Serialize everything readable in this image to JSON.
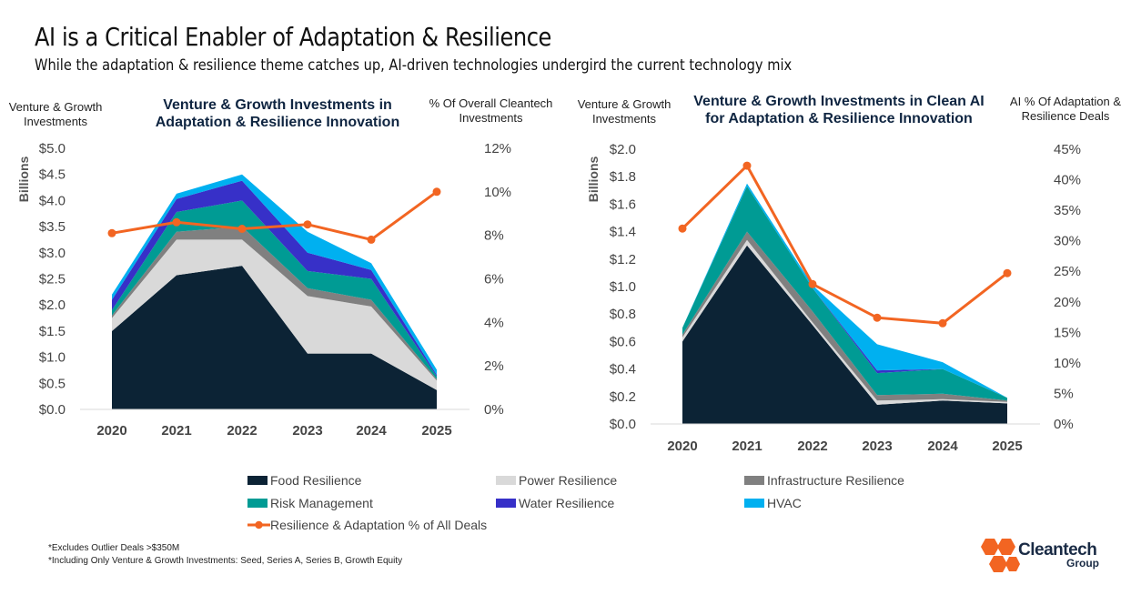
{
  "title": "AI is a Critical Enabler of Adaptation & Resilience",
  "subtitle": "While the adaptation & resilience theme catches up, AI-driven technologies undergird the current technology mix",
  "colors": {
    "food": "#0c2335",
    "power": "#d9d9d9",
    "infrastructure": "#808080",
    "risk": "#009b94",
    "water": "#3730c8",
    "hvac": "#00b0f0",
    "line": "#f26522"
  },
  "legend": {
    "food": "Food Resilience",
    "power": "Power Resilience",
    "infrastructure": "Infrastructure Resilience",
    "risk": "Risk Management",
    "water": "Water Resilience",
    "hvac": "HVAC",
    "line": "Resilience & Adaptation % of All Deals"
  },
  "footnotes": [
    "*Excludes Outlier Deals >$350M",
    "*Including Only Venture & Growth Investments: Seed, Series A, Series B, Growth Equity"
  ],
  "logo": {
    "name": "Cleantech",
    "sub": "Group"
  },
  "chart_data": [
    {
      "type": "area",
      "title": "Venture & Growth Investments in Adaptation & Resilience Innovation",
      "left_axis_title": "Venture & Growth Investments",
      "right_axis_title": "% Of Overall Cleantech Investments",
      "ylabel": "Billions",
      "categories": [
        "2020",
        "2021",
        "2022",
        "2023",
        "2024",
        "2025"
      ],
      "ylim": [
        0,
        5.0
      ],
      "yticks": [
        "$0.0",
        "$0.5",
        "$1.0",
        "$1.5",
        "$2.0",
        "$2.5",
        "$3.0",
        "$3.5",
        "$4.0",
        "$4.5",
        "$5.0"
      ],
      "y2lim": [
        0,
        12
      ],
      "y2ticks": [
        "0%",
        "2%",
        "4%",
        "6%",
        "8%",
        "10%",
        "12%"
      ],
      "stacked_series": [
        {
          "key": "food",
          "name": "Food Resilience",
          "values": [
            1.5,
            2.57,
            2.75,
            1.07,
            1.07,
            0.37
          ]
        },
        {
          "key": "power",
          "name": "Power Resilience",
          "values": [
            0.25,
            0.68,
            0.5,
            1.1,
            0.9,
            0.18
          ]
        },
        {
          "key": "infrastructure",
          "name": "Infrastructure Resilience",
          "values": [
            0.05,
            0.15,
            0.25,
            0.15,
            0.13,
            0.03
          ]
        },
        {
          "key": "risk",
          "name": "Risk Management",
          "values": [
            0.1,
            0.38,
            0.5,
            0.33,
            0.4,
            0.05
          ]
        },
        {
          "key": "water",
          "name": "Water Resilience",
          "values": [
            0.2,
            0.25,
            0.38,
            0.35,
            0.17,
            0.03
          ]
        },
        {
          "key": "hvac",
          "name": "HVAC",
          "values": [
            0.1,
            0.1,
            0.12,
            0.4,
            0.13,
            0.1
          ]
        }
      ],
      "line_series": {
        "key": "line",
        "name": "Resilience & Adaptation % of All Deals",
        "values": [
          8.1,
          8.6,
          8.3,
          8.5,
          7.8,
          10.0
        ]
      }
    },
    {
      "type": "area",
      "title": "Venture & Growth Investments in Clean AI for Adaptation & Resilience Innovation",
      "left_axis_title": "Venture & Growth Investments",
      "right_axis_title": "AI % Of Adaptation & Resilience Deals",
      "ylabel": "Billions",
      "categories": [
        "2020",
        "2021",
        "2022",
        "2023",
        "2024",
        "2025"
      ],
      "ylim": [
        0,
        2.0
      ],
      "yticks": [
        "$0.0",
        "$0.2",
        "$0.4",
        "$0.6",
        "$0.8",
        "$1.0",
        "$1.2",
        "$1.4",
        "$1.6",
        "$1.8",
        "$2.0"
      ],
      "y2lim": [
        0,
        45
      ],
      "y2ticks": [
        "0%",
        "5%",
        "10%",
        "15%",
        "20%",
        "25%",
        "30%",
        "35%",
        "40%",
        "45%"
      ],
      "stacked_series": [
        {
          "key": "food",
          "name": "Food Resilience",
          "values": [
            0.6,
            1.3,
            0.72,
            0.14,
            0.17,
            0.15
          ]
        },
        {
          "key": "power",
          "name": "Power Resilience",
          "values": [
            0.03,
            0.04,
            0.02,
            0.03,
            0.01,
            0.01
          ]
        },
        {
          "key": "infrastructure",
          "name": "Infrastructure Resilience",
          "values": [
            0.02,
            0.06,
            0.08,
            0.04,
            0.04,
            0.01
          ]
        },
        {
          "key": "risk",
          "name": "Risk Management",
          "values": [
            0.05,
            0.33,
            0.17,
            0.16,
            0.18,
            0.02
          ]
        },
        {
          "key": "water",
          "name": "Water Resilience",
          "values": [
            0.0,
            0.0,
            0.0,
            0.02,
            0.0,
            0.0
          ]
        },
        {
          "key": "hvac",
          "name": "HVAC",
          "values": [
            0.0,
            0.02,
            0.02,
            0.19,
            0.05,
            0.0
          ]
        }
      ],
      "line_series": {
        "key": "line",
        "name": "Resilience & Adaptation % of All Deals",
        "values": [
          32.0,
          42.3,
          22.9,
          17.4,
          16.5,
          24.7
        ]
      }
    }
  ]
}
